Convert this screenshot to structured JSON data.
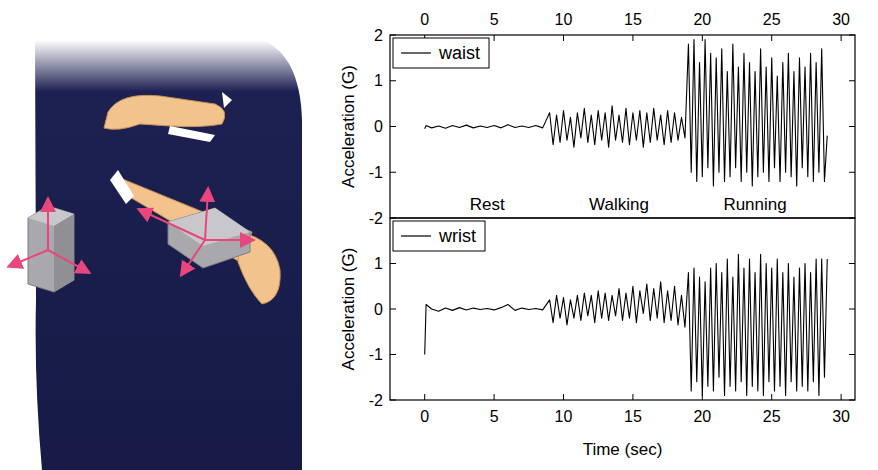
{
  "chart_data": [
    {
      "type": "line",
      "y_label": "Acceleration (G)",
      "x": [
        0,
        0.1,
        0.5,
        1,
        1.5,
        2,
        2.5,
        3,
        3.5,
        4,
        4.5,
        5,
        5.5,
        6,
        6.5,
        7,
        7.5,
        8,
        8.5,
        9,
        9.25,
        9.5,
        9.75,
        10,
        10.25,
        10.5,
        10.75,
        11,
        11.25,
        11.5,
        11.75,
        12,
        12.25,
        12.5,
        12.75,
        13,
        13.25,
        13.5,
        13.75,
        14,
        14.25,
        14.5,
        14.75,
        15,
        15.25,
        15.5,
        15.75,
        16,
        16.25,
        16.5,
        16.75,
        17,
        17.25,
        17.5,
        17.75,
        18,
        18.25,
        18.5,
        18.75,
        19,
        19.2,
        19.4,
        19.6,
        19.8,
        20,
        20.2,
        20.4,
        20.6,
        20.8,
        21,
        21.2,
        21.4,
        21.6,
        21.8,
        22,
        22.2,
        22.4,
        22.6,
        22.8,
        23,
        23.2,
        23.4,
        23.6,
        23.8,
        24,
        24.2,
        24.4,
        24.6,
        24.8,
        25,
        25.2,
        25.4,
        25.6,
        25.8,
        26,
        26.2,
        26.4,
        26.6,
        26.8,
        27,
        27.2,
        27.4,
        27.6,
        27.8,
        28,
        28.2,
        28.4,
        28.6,
        28.8,
        29
      ],
      "series": [
        {
          "name": "waist",
          "color": "#000000",
          "values": [
            -0.05,
            0.02,
            -0.03,
            0.01,
            -0.04,
            0.02,
            -0.02,
            0.03,
            -0.03,
            0.01,
            -0.02,
            0.02,
            -0.03,
            0.04,
            -0.02,
            0.01,
            -0.02,
            0.02,
            -0.03,
            0.3,
            -0.4,
            0.25,
            -0.35,
            0.35,
            -0.3,
            0.2,
            -0.45,
            0.3,
            -0.25,
            0.4,
            -0.35,
            0.25,
            -0.4,
            0.35,
            -0.3,
            0.3,
            -0.45,
            0.45,
            -0.3,
            0.25,
            -0.35,
            0.4,
            -0.4,
            0.3,
            -0.3,
            0.35,
            -0.45,
            0.3,
            -0.35,
            0.4,
            -0.3,
            0.25,
            -0.4,
            0.35,
            -0.35,
            0.3,
            -0.3,
            0.2,
            -0.25,
            1.8,
            -1.0,
            1.9,
            -1.2,
            1.4,
            -1.1,
            1.9,
            -0.9,
            1.6,
            -1.3,
            1.5,
            -1.0,
            1.7,
            -1.2,
            1.2,
            -1.1,
            1.8,
            -0.9,
            1.3,
            -1.2,
            1.6,
            -1.0,
            1.4,
            -1.3,
            1.2,
            -1.1,
            1.7,
            -1.0,
            1.3,
            -1.2,
            1.5,
            -0.9,
            1.1,
            -1.2,
            1.4,
            -1.0,
            1.6,
            -1.1,
            1.2,
            -1.3,
            1.5,
            -0.9,
            1.3,
            -1.1,
            1.6,
            -1.2,
            1.4,
            -1.0,
            1.7,
            -1.2,
            -0.2
          ]
        }
      ],
      "xlim": [
        -2.5,
        31
      ],
      "xticks": [
        0,
        5,
        10,
        15,
        20,
        25,
        30
      ],
      "ylim": [
        -2,
        2
      ],
      "yticks": [
        -2,
        -1,
        0,
        1,
        2
      ],
      "annotations": [
        {
          "text": "Rest",
          "x": 4.5,
          "y": -1.7
        },
        {
          "text": "Walking",
          "x": 14,
          "y": -1.7
        },
        {
          "text": "Running",
          "x": 23.8,
          "y": -1.7
        }
      ],
      "legend": "upper left",
      "grid": false
    },
    {
      "type": "line",
      "x_label": "Time (sec)",
      "y_label": "Acceleration (G)",
      "x": [
        0,
        0.1,
        0.5,
        1,
        1.5,
        2,
        2.5,
        3,
        3.5,
        4,
        4.5,
        5,
        5.5,
        6,
        6.5,
        7,
        7.5,
        8,
        8.5,
        9,
        9.25,
        9.5,
        9.75,
        10,
        10.25,
        10.5,
        10.75,
        11,
        11.25,
        11.5,
        11.75,
        12,
        12.25,
        12.5,
        12.75,
        13,
        13.25,
        13.5,
        13.75,
        14,
        14.25,
        14.5,
        14.75,
        15,
        15.25,
        15.5,
        15.75,
        16,
        16.25,
        16.5,
        16.75,
        17,
        17.25,
        17.5,
        17.75,
        18,
        18.25,
        18.5,
        18.75,
        19,
        19.2,
        19.4,
        19.6,
        19.8,
        20,
        20.2,
        20.4,
        20.6,
        20.8,
        21,
        21.2,
        21.4,
        21.6,
        21.8,
        22,
        22.2,
        22.4,
        22.6,
        22.8,
        23,
        23.2,
        23.4,
        23.6,
        23.8,
        24,
        24.2,
        24.4,
        24.6,
        24.8,
        25,
        25.2,
        25.4,
        25.6,
        25.8,
        26,
        26.2,
        26.4,
        26.6,
        26.8,
        27,
        27.2,
        27.4,
        27.6,
        27.8,
        28,
        28.2,
        28.4,
        28.6,
        28.8,
        29
      ],
      "series": [
        {
          "name": "wrist",
          "color": "#000000",
          "values": [
            -1.0,
            0.1,
            0.0,
            -0.05,
            0.02,
            -0.03,
            0.03,
            -0.02,
            0.02,
            -0.01,
            0.01,
            -0.02,
            0.03,
            0.1,
            -0.03,
            0.02,
            -0.01,
            0.01,
            -0.02,
            0.2,
            -0.3,
            0.3,
            -0.2,
            0.25,
            -0.35,
            0.2,
            -0.2,
            0.3,
            -0.25,
            0.35,
            -0.15,
            0.3,
            -0.3,
            0.4,
            -0.2,
            0.35,
            -0.25,
            0.3,
            -0.15,
            0.45,
            -0.25,
            0.35,
            -0.2,
            0.5,
            -0.3,
            0.4,
            -0.1,
            0.55,
            -0.25,
            0.45,
            -0.2,
            0.6,
            -0.3,
            0.4,
            -0.25,
            0.5,
            -0.35,
            0.3,
            -0.4,
            0.8,
            -1.8,
            0.9,
            -1.6,
            0.7,
            -1.9,
            0.6,
            -1.7,
            0.9,
            -1.8,
            1.0,
            -1.5,
            0.8,
            -1.9,
            1.1,
            -1.7,
            0.7,
            -1.8,
            1.2,
            -1.6,
            0.9,
            -1.9,
            1.1,
            -1.7,
            0.8,
            -1.8,
            1.2,
            -1.9,
            1.0,
            -1.6,
            0.9,
            -1.8,
            1.1,
            -1.7,
            0.8,
            -1.9,
            1.0,
            -1.6,
            0.7,
            -1.8,
            0.9,
            -1.7,
            1.0,
            -1.8,
            0.8,
            -1.6,
            1.1,
            -1.9,
            1.1,
            -1.5,
            1.1
          ]
        }
      ],
      "xlim": [
        -2.5,
        31
      ],
      "xticks": [
        0,
        5,
        10,
        15,
        20,
        25,
        30
      ],
      "ylim": [
        -2,
        2
      ],
      "yticks": [
        -2,
        -1,
        0,
        1
      ],
      "legend": "upper left",
      "grid": false
    }
  ]
}
